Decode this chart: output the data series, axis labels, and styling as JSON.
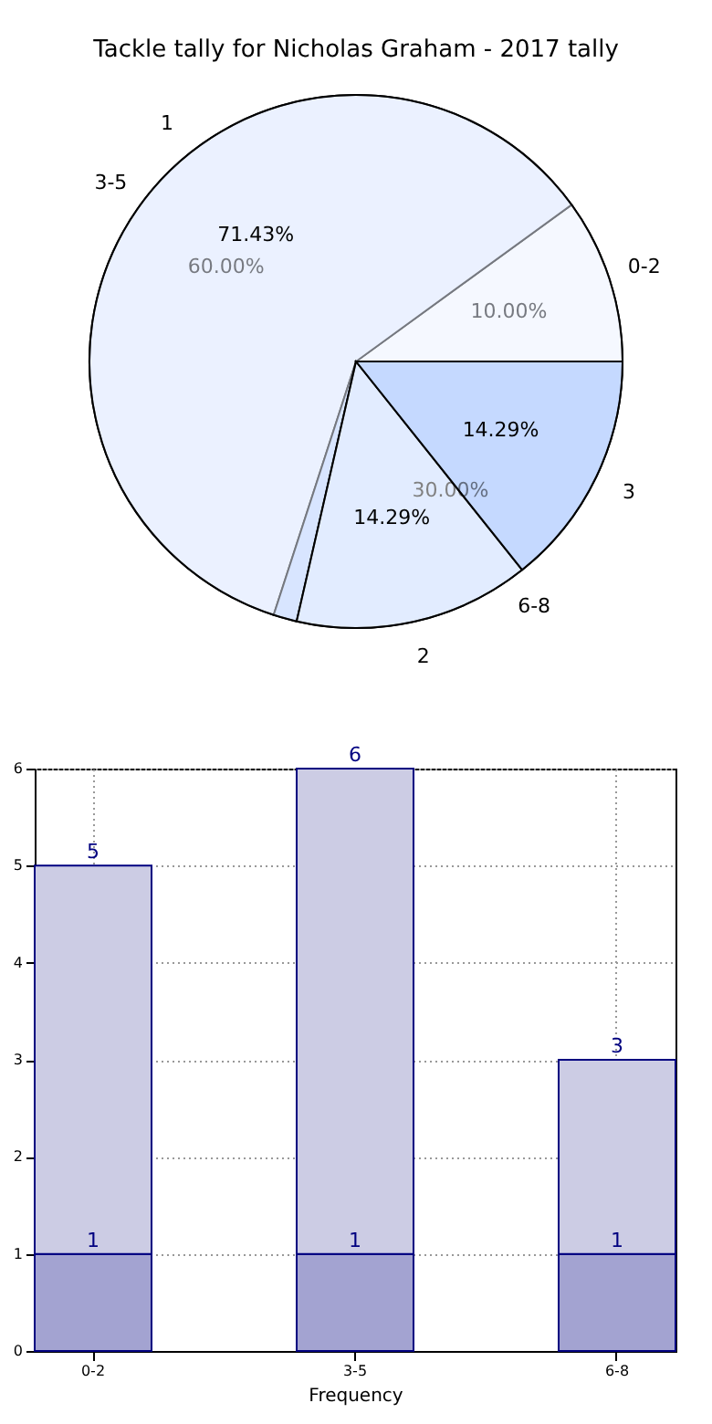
{
  "chart_data": [
    {
      "type": "pie",
      "title": "Tackle tally for Nicholas Graham - 2017 tally",
      "categories": [
        "0-2",
        "3-5",
        "6-8"
      ],
      "values": [
        10,
        60,
        30
      ],
      "value_labels": [
        "10.00%",
        "60.00%",
        "30.00%"
      ],
      "colors": [
        "#ffffff",
        "#ebf1ff",
        "#c5d9ff"
      ]
    },
    {
      "type": "pie",
      "categories": [
        "1",
        "2",
        "3"
      ],
      "values": [
        71.43,
        14.29,
        14.29
      ],
      "value_labels": [
        "71.43%",
        "14.29%",
        "14.29%"
      ],
      "colors": [
        "#ebf1ff",
        "#ffffff",
        "#c5d9ff"
      ]
    },
    {
      "type": "bar",
      "xlabel": "Frequency",
      "categories": [
        "0-2",
        "3-5",
        "6-8"
      ],
      "stacked": true,
      "series": [
        {
          "color": "#a3a3d1",
          "values": [
            1,
            1,
            1
          ],
          "value_labels": [
            "1",
            "1",
            "1"
          ]
        },
        {
          "color": "#ccccE4",
          "values": [
            4,
            5,
            2
          ]
        }
      ],
      "totals": [
        "5",
        "6",
        "3"
      ],
      "ylim": [
        0,
        6
      ],
      "yticks": [
        0,
        1,
        2,
        3,
        4,
        5,
        6
      ],
      "grid": true
    }
  ]
}
